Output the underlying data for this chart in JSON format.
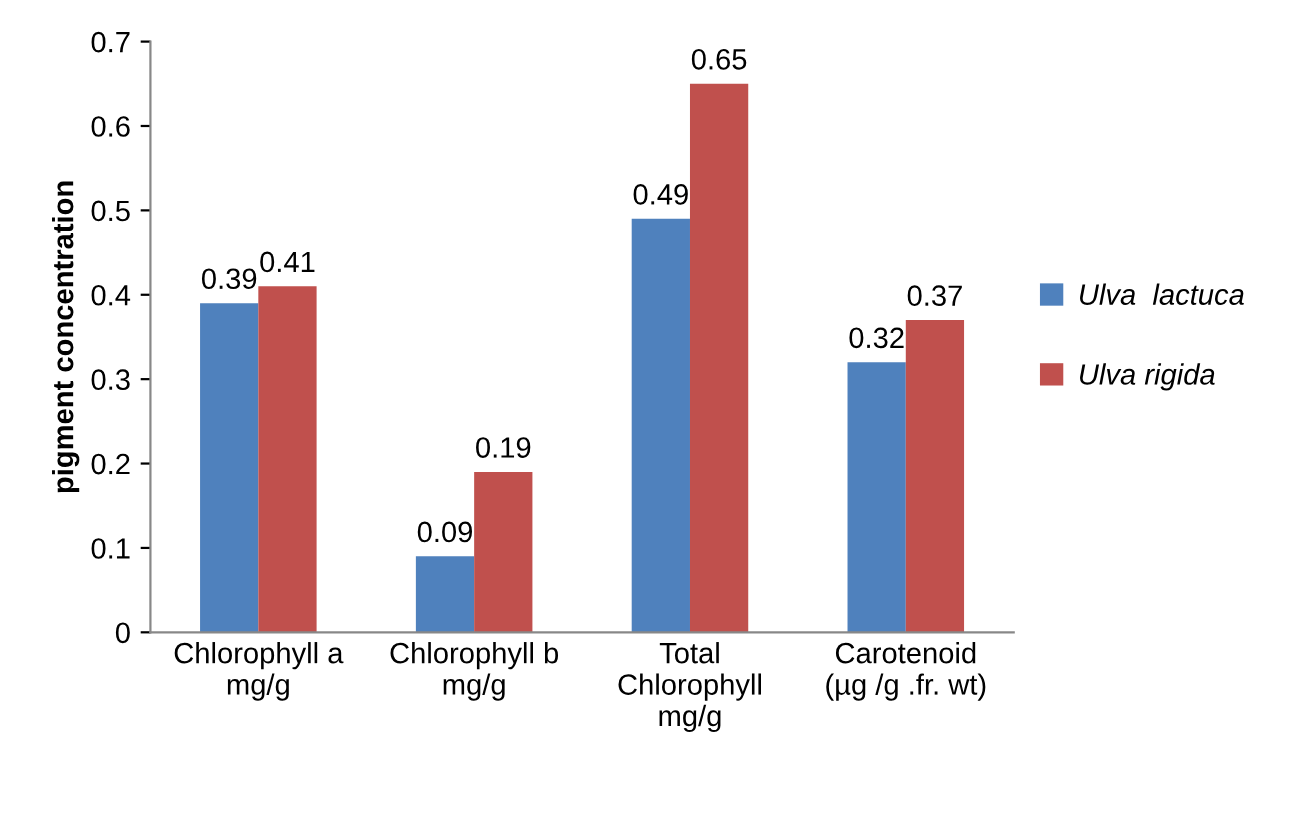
{
  "chart_data": {
    "type": "bar",
    "ylabel": "pigment concentration",
    "categories": [
      "Chlorophyll a\nmg/g",
      "Chlorophyll b\nmg/g",
      "Total\nChlorophyll\nmg/g",
      "Carotenoid\n(µg /g .fr. wt)"
    ],
    "series": [
      {
        "name": "Ulva  lactuca",
        "color": "#4f81bd",
        "values": [
          0.39,
          0.09,
          0.49,
          0.32
        ]
      },
      {
        "name": "Ulva rigida",
        "color": "#c0504d",
        "values": [
          0.41,
          0.19,
          0.65,
          0.37
        ]
      }
    ],
    "ylim": [
      0,
      0.7
    ],
    "yticks": [
      0,
      0.1,
      0.2,
      0.3,
      0.4,
      0.5,
      0.6,
      0.7
    ],
    "grid": false,
    "legend": "right",
    "data_labels": true
  }
}
